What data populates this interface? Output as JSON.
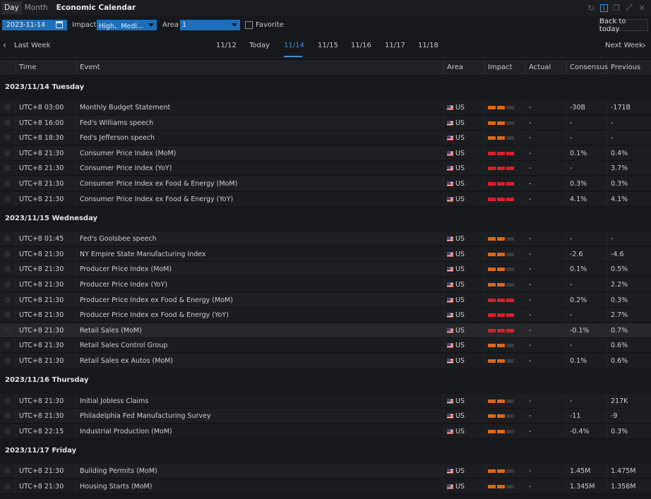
{
  "titlebar": {
    "seg_day": "Day",
    "seg_month": "Month",
    "title": "Economic Calendar",
    "badge": "1"
  },
  "filters": {
    "date": "2023-11-14",
    "impact_label": "Impact",
    "impact_value": "High、Medi...",
    "area_label": "Area",
    "area_value": "1",
    "favorite_label": "Favorite",
    "back_label": "Back to today"
  },
  "weeknav": {
    "last_week": "Last Week",
    "next_week": "Next Week",
    "days": [
      "11/12",
      "Today",
      "11/14",
      "11/15",
      "11/16",
      "11/17",
      "11/18"
    ],
    "active_index": 2
  },
  "columns": {
    "time": "Time",
    "event": "Event",
    "area": "Area",
    "impact": "Impact",
    "actual": "Actual",
    "consensus": "Consensus",
    "previous": "Previous"
  },
  "groups": [
    {
      "date": "2023/11/14 Tuesday",
      "rows": [
        {
          "time": "UTC+8 03:00",
          "event": "Monthly Budget Statement",
          "area": "US",
          "impact": 2,
          "actual": "-",
          "consensus": "-30B",
          "previous": "-171B"
        },
        {
          "time": "UTC+8 16:00",
          "event": "Fed's Williams speech",
          "area": "US",
          "impact": 2,
          "actual": "-",
          "consensus": "-",
          "previous": "-"
        },
        {
          "time": "UTC+8 18:30",
          "event": "Fed's Jefferson speech",
          "area": "US",
          "impact": 2,
          "actual": "-",
          "consensus": "-",
          "previous": "-"
        },
        {
          "time": "UTC+8 21:30",
          "event": "Consumer Price Index (MoM)",
          "area": "US",
          "impact": 3,
          "actual": "-",
          "consensus": "0.1%",
          "previous": "0.4%"
        },
        {
          "time": "UTC+8 21:30",
          "event": "Consumer Price Index (YoY)",
          "area": "US",
          "impact": 3,
          "actual": "-",
          "consensus": "-",
          "previous": "3.7%"
        },
        {
          "time": "UTC+8 21:30",
          "event": "Consumer Price Index ex Food & Energy (MoM)",
          "area": "US",
          "impact": 3,
          "actual": "-",
          "consensus": "0.3%",
          "previous": "0.3%"
        },
        {
          "time": "UTC+8 21:30",
          "event": "Consumer Price Index ex Food & Energy (YoY)",
          "area": "US",
          "impact": 3,
          "actual": "-",
          "consensus": "4.1%",
          "previous": "4.1%"
        }
      ]
    },
    {
      "date": "2023/11/15 Wednesday",
      "rows": [
        {
          "time": "UTC+8 01:45",
          "event": "Fed's Goolsbee speech",
          "area": "US",
          "impact": 2,
          "actual": "-",
          "consensus": "-",
          "previous": "-"
        },
        {
          "time": "UTC+8 21:30",
          "event": "NY Empire State Manufacturing Index",
          "area": "US",
          "impact": 2,
          "actual": "-",
          "consensus": "-2.6",
          "previous": "-4.6"
        },
        {
          "time": "UTC+8 21:30",
          "event": "Producer Price Index (MoM)",
          "area": "US",
          "impact": 2,
          "actual": "-",
          "consensus": "0.1%",
          "previous": "0.5%"
        },
        {
          "time": "UTC+8 21:30",
          "event": "Producer Price Index (YoY)",
          "area": "US",
          "impact": 2,
          "actual": "-",
          "consensus": "-",
          "previous": "2.2%"
        },
        {
          "time": "UTC+8 21:30",
          "event": "Producer Price Index ex Food & Energy (MoM)",
          "area": "US",
          "impact": 3,
          "actual": "-",
          "consensus": "0.2%",
          "previous": "0.3%"
        },
        {
          "time": "UTC+8 21:30",
          "event": "Producer Price Index ex Food & Energy (YoY)",
          "area": "US",
          "impact": 3,
          "actual": "-",
          "consensus": "-",
          "previous": "2.7%"
        },
        {
          "time": "UTC+8 21:30",
          "event": "Retail Sales (MoM)",
          "area": "US",
          "impact": 3,
          "actual": "-",
          "consensus": "-0.1%",
          "previous": "0.7%",
          "highlight": true
        },
        {
          "time": "UTC+8 21:30",
          "event": "Retail Sales Control Group",
          "area": "US",
          "impact": 2,
          "actual": "-",
          "consensus": "-",
          "previous": "0.6%"
        },
        {
          "time": "UTC+8 21:30",
          "event": "Retail Sales ex Autos (MoM)",
          "area": "US",
          "impact": 2,
          "actual": "-",
          "consensus": "0.1%",
          "previous": "0.6%"
        }
      ]
    },
    {
      "date": "2023/11/16 Thursday",
      "rows": [
        {
          "time": "UTC+8 21:30",
          "event": "Initial Jobless Claims",
          "area": "US",
          "impact": 2,
          "actual": "-",
          "consensus": "-",
          "previous": "217K"
        },
        {
          "time": "UTC+8 21:30",
          "event": "Philadelphia Fed Manufacturing Survey",
          "area": "US",
          "impact": 2,
          "actual": "-",
          "consensus": "-11",
          "previous": "-9"
        },
        {
          "time": "UTC+8 22:15",
          "event": "Industrial Production (MoM)",
          "area": "US",
          "impact": 2,
          "actual": "-",
          "consensus": "-0.4%",
          "previous": "0.3%"
        }
      ]
    },
    {
      "date": "2023/11/17 Friday",
      "rows": [
        {
          "time": "UTC+8 21:30",
          "event": "Building Permits (MoM)",
          "area": "US",
          "impact": 2,
          "actual": "-",
          "consensus": "1.45M",
          "previous": "1.475M"
        },
        {
          "time": "UTC+8 21:30",
          "event": "Housing Starts (MoM)",
          "area": "US",
          "impact": 2,
          "actual": "-",
          "consensus": "1.345M",
          "previous": "1.358M"
        }
      ]
    }
  ],
  "colors": {
    "accent": "#3d8fd8",
    "impact_medium": "#d9691e",
    "impact_high": "#d9202a",
    "impact_off": "#3a3b40"
  }
}
